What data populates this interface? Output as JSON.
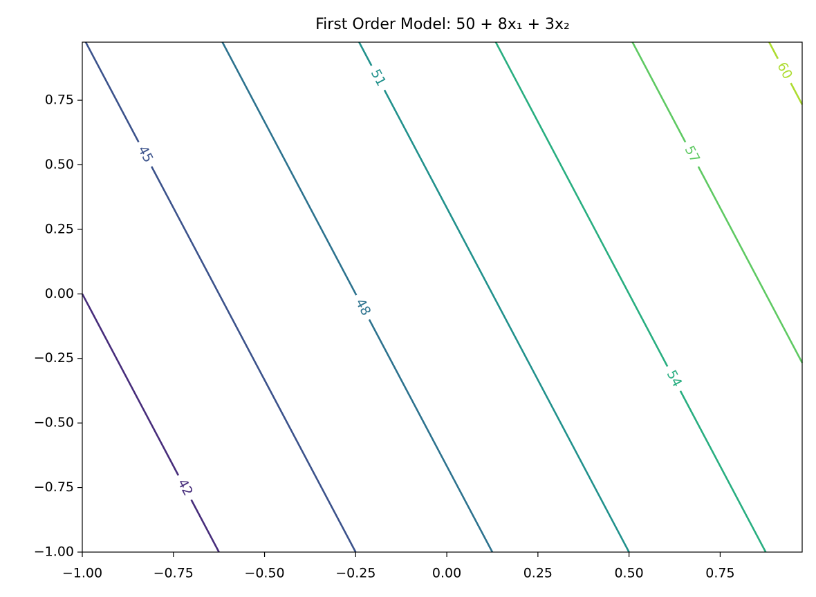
{
  "chart_data": {
    "type": "contour",
    "title": "First Order Model: 50 + 8x₁ + 3x₂",
    "xlim": [
      -1,
      0.975
    ],
    "ylim": [
      -1,
      0.975
    ],
    "xticks": [
      {
        "value": -1,
        "label": "−1.00"
      },
      {
        "value": -0.75,
        "label": "−0.75"
      },
      {
        "value": -0.5,
        "label": "−0.50"
      },
      {
        "value": -0.25,
        "label": "−0.25"
      },
      {
        "value": 0,
        "label": "0.00"
      },
      {
        "value": 0.25,
        "label": "0.25"
      },
      {
        "value": 0.5,
        "label": "0.50"
      },
      {
        "value": 0.75,
        "label": "0.75"
      }
    ],
    "yticks": [
      {
        "value": -1,
        "label": "−1.00"
      },
      {
        "value": -0.75,
        "label": "−0.75"
      },
      {
        "value": -0.5,
        "label": "−0.50"
      },
      {
        "value": -0.25,
        "label": "−0.25"
      },
      {
        "value": 0,
        "label": "0.00"
      },
      {
        "value": 0.25,
        "label": "0.25"
      },
      {
        "value": 0.5,
        "label": "0.50"
      },
      {
        "value": 0.75,
        "label": "0.75"
      }
    ],
    "series": [
      {
        "level": 42,
        "color": "#472d7b",
        "x": [
          -1,
          -0.625
        ],
        "y": [
          0,
          -1
        ]
      },
      {
        "level": 45,
        "color": "#3b528b",
        "x": [
          -0.9906,
          -0.25
        ],
        "y": [
          0.975,
          -1
        ]
      },
      {
        "level": 48,
        "color": "#2c728e",
        "x": [
          -0.6156,
          0.125
        ],
        "y": [
          0.975,
          -1
        ]
      },
      {
        "level": 51,
        "color": "#21918c",
        "x": [
          -0.2406,
          0.5
        ],
        "y": [
          0.975,
          -1
        ]
      },
      {
        "level": 54,
        "color": "#28ae80",
        "x": [
          0.1344,
          0.875
        ],
        "y": [
          0.975,
          -1
        ]
      },
      {
        "level": 57,
        "color": "#5ec962",
        "x": [
          0.5094,
          0.975
        ],
        "y": [
          0.975,
          -0.2667
        ]
      },
      {
        "level": 60,
        "color": "#addc30",
        "x": [
          0.8844,
          0.975
        ],
        "y": [
          0.975,
          0.7333
        ]
      }
    ]
  }
}
